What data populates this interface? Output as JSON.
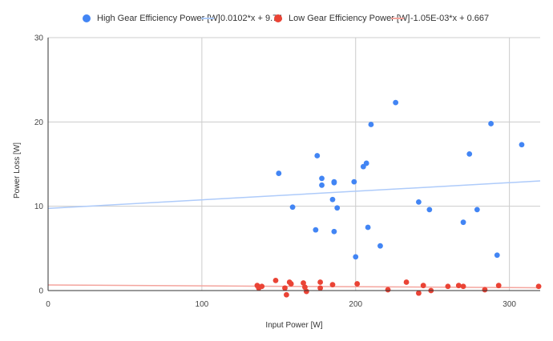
{
  "chart_data": {
    "type": "scatter",
    "xlabel": "Input Power [W]",
    "ylabel": "Power Loss [W]",
    "xlim": [
      0,
      320
    ],
    "ylim": [
      0,
      30
    ],
    "xticks": [
      "0",
      "100",
      "200",
      "300"
    ],
    "yticks": [
      "0",
      "10",
      "20",
      "30"
    ],
    "grid": true,
    "legend_position": "top",
    "series": [
      {
        "name": "High Gear Efficiency Power [W]",
        "color": "#4285f4",
        "points": [
          [
            150,
            13.9
          ],
          [
            159,
            9.9
          ],
          [
            174,
            7.2
          ],
          [
            175,
            16.0
          ],
          [
            178,
            13.3
          ],
          [
            178,
            12.5
          ],
          [
            185,
            10.8
          ],
          [
            186,
            12.8
          ],
          [
            186,
            7.0
          ],
          [
            186,
            12.9
          ],
          [
            188,
            9.8
          ],
          [
            199,
            12.9
          ],
          [
            200,
            4.0
          ],
          [
            205,
            14.7
          ],
          [
            207,
            15.1
          ],
          [
            208,
            7.5
          ],
          [
            210,
            19.7
          ],
          [
            216,
            5.3
          ],
          [
            226,
            22.3
          ],
          [
            241,
            10.5
          ],
          [
            248,
            9.6
          ],
          [
            270,
            8.1
          ],
          [
            274,
            16.2
          ],
          [
            279,
            9.6
          ],
          [
            288,
            19.8
          ],
          [
            292,
            4.2
          ],
          [
            308,
            17.3
          ]
        ]
      },
      {
        "name": "0.0102*x + 9.74",
        "color": "#aecbfa",
        "trend": {
          "slope": 0.0102,
          "intercept": 9.74
        }
      },
      {
        "name": "Low Gear Efficiency Power [W]",
        "color": "#ea4335",
        "points": [
          [
            136,
            0.6
          ],
          [
            137,
            0.3
          ],
          [
            139,
            0.5
          ],
          [
            148,
            1.2
          ],
          [
            154,
            0.3
          ],
          [
            155,
            -0.5
          ],
          [
            157,
            1.0
          ],
          [
            158,
            0.8
          ],
          [
            166,
            0.9
          ],
          [
            167,
            0.4
          ],
          [
            168,
            -0.1
          ],
          [
            177,
            1.0
          ],
          [
            177,
            0.3
          ],
          [
            185,
            0.7
          ],
          [
            201,
            0.8
          ],
          [
            221,
            0.1
          ],
          [
            233,
            1.0
          ],
          [
            241,
            -0.3
          ],
          [
            244,
            0.6
          ],
          [
            249,
            0.0
          ],
          [
            260,
            0.5
          ],
          [
            267,
            0.6
          ],
          [
            270,
            0.5
          ],
          [
            284,
            0.1
          ],
          [
            293,
            0.6
          ],
          [
            319,
            0.5
          ]
        ]
      },
      {
        "name": "-1.05E-03*x + 0.667",
        "color": "#f4a59e",
        "trend": {
          "slope": -0.00105,
          "intercept": 0.667
        }
      }
    ]
  }
}
